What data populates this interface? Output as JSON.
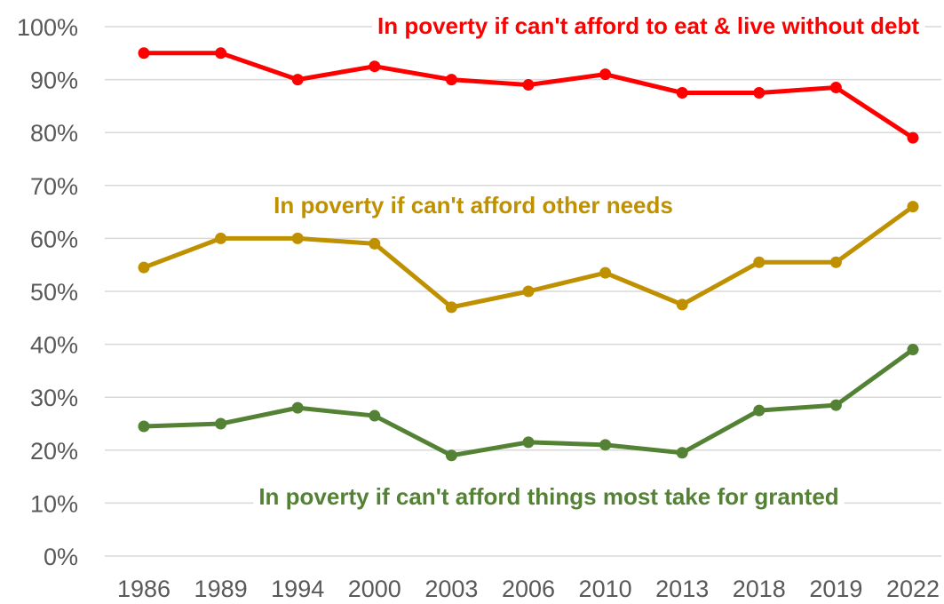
{
  "chart_data": {
    "type": "line",
    "title": "",
    "xlabel": "",
    "ylabel": "",
    "categories": [
      "1986",
      "1989",
      "1994",
      "2000",
      "2003",
      "2006",
      "2010",
      "2013",
      "2018",
      "2019",
      "2022"
    ],
    "ylim": [
      0,
      100
    ],
    "y_ticks": [
      "0%",
      "10%",
      "20%",
      "30%",
      "40%",
      "50%",
      "60%",
      "70%",
      "80%",
      "90%",
      "100%"
    ],
    "grid": true,
    "legend": "none",
    "series": [
      {
        "name": "In poverty if can't afford to eat & live without debt",
        "color": "#ff0000",
        "values": [
          95,
          95,
          90,
          92.5,
          90,
          89,
          91,
          87.5,
          87.5,
          88.5,
          79
        ]
      },
      {
        "name": "In poverty if can't afford other needs",
        "color": "#bf9000",
        "values": [
          54.5,
          60,
          60,
          59,
          47,
          50,
          53.5,
          47.5,
          55.5,
          55.5,
          66
        ]
      },
      {
        "name": "In poverty if can't afford things most take for granted",
        "color": "#548235",
        "values": [
          24.5,
          25,
          28,
          26.5,
          19,
          21.5,
          21,
          19.5,
          27.5,
          28.5,
          39
        ]
      }
    ]
  }
}
